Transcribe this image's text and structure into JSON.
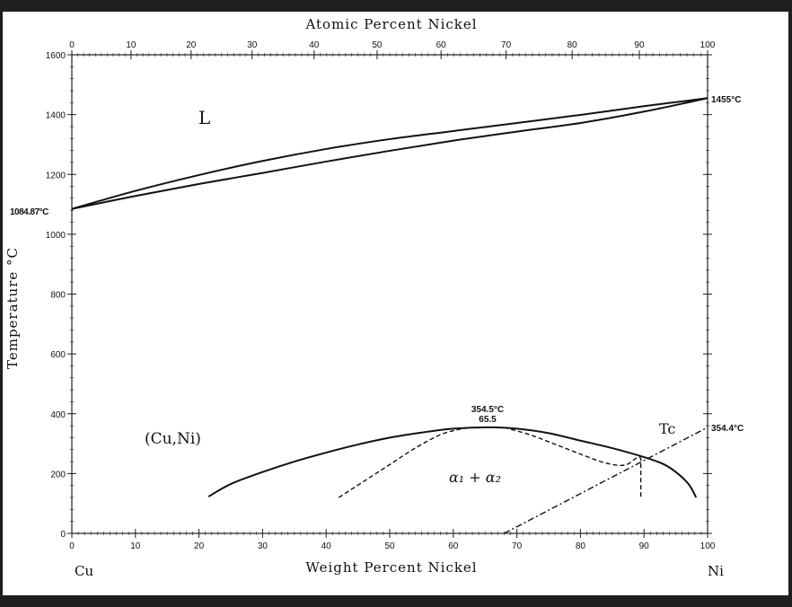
{
  "chart_data": {
    "type": "line",
    "title": "",
    "xlabel": "Weight Percent Nickel",
    "x2label": "Atomic Percent Nickel",
    "ylabel": "Temperature °C",
    "xlim": [
      0,
      100
    ],
    "ylim": [
      0,
      1600
    ],
    "xticks": [
      0,
      10,
      20,
      30,
      40,
      50,
      60,
      70,
      80,
      90,
      100
    ],
    "x2ticks": [
      0,
      10,
      20,
      30,
      40,
      50,
      60,
      70,
      80,
      90,
      100
    ],
    "yticks": [
      0,
      200,
      400,
      600,
      800,
      1000,
      1200,
      1400,
      1600
    ],
    "element_labels": {
      "left": "Cu",
      "right": "Ni"
    },
    "series": [
      {
        "style": "solid",
        "x": [
          0,
          10,
          20,
          30,
          40,
          50,
          60,
          70,
          80,
          90,
          100
        ],
        "y": [
          1084.87,
          1145,
          1198,
          1245,
          1285,
          1318,
          1345,
          1372,
          1399,
          1428,
          1455
        ]
      },
      {
        "style": "solid",
        "x": [
          0,
          10,
          20,
          30,
          40,
          50,
          60,
          70,
          80,
          90,
          100
        ],
        "y": [
          1084.87,
          1128,
          1168,
          1205,
          1243,
          1279,
          1313,
          1343,
          1372,
          1410,
          1455
        ]
      },
      {
        "style": "solid",
        "x": [
          21.5,
          25,
          30,
          35,
          40,
          45,
          50,
          55,
          60,
          65.5,
          70,
          75,
          80,
          85,
          90,
          93,
          95,
          97,
          98.2
        ],
        "y": [
          123,
          165,
          205,
          240,
          270,
          297,
          320,
          337,
          350,
          354.5,
          350,
          335,
          310,
          285,
          255,
          232,
          205,
          165,
          120
        ]
      },
      {
        "style": "dashed",
        "x": [
          42,
          46,
          50,
          54,
          58,
          61,
          63
        ],
        "y": [
          120,
          175,
          230,
          285,
          330,
          348,
          354
        ]
      },
      {
        "style": "dashed",
        "x": [
          68,
          72,
          76,
          80,
          84,
          87,
          89.5,
          89.5
        ],
        "y": [
          354,
          330,
          298,
          265,
          235,
          228,
          250,
          120
        ]
      },
      {
        "style": "dashdot",
        "x": [
          68,
          100
        ],
        "y": [
          0,
          354.4
        ]
      }
    ],
    "annotations": {
      "liquid": "L",
      "solid": "(Cu,Ni)",
      "gap": "α₁ + α₂",
      "curie": "Tc",
      "critical_temp": "354.5°C",
      "critical_comp": "65.5",
      "cu_melt": "1084.87°C",
      "ni_melt": "1455°C",
      "ni_curie": "354.4°C"
    }
  }
}
